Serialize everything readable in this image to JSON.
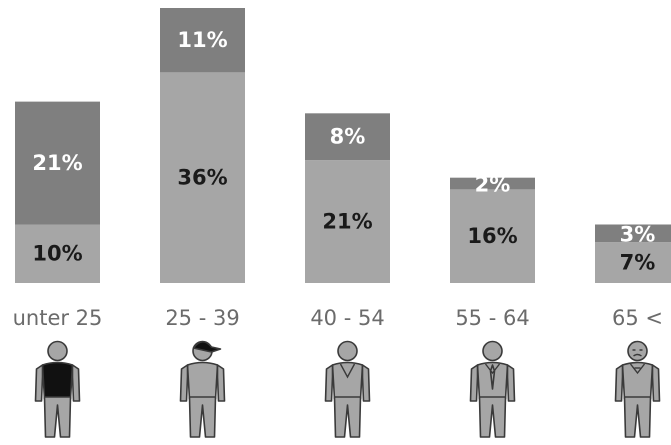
{
  "chart_data": {
    "type": "bar",
    "stacked": true,
    "categories": [
      "unter 25",
      "25 - 39",
      "40 - 54",
      "55 - 64",
      "65 <"
    ],
    "series": [
      {
        "values": [
          10,
          36,
          21,
          16,
          7
        ],
        "labels": [
          "10%",
          "36%",
          "21%",
          "16%",
          "7%"
        ],
        "color": "#a6a6a6",
        "label_color": "#1a1a1a"
      },
      {
        "values": [
          21,
          11,
          8,
          2,
          3
        ],
        "labels": [
          "21%",
          "11%",
          "8%",
          "2%",
          "3%"
        ],
        "color": "#7f7f7f",
        "label_color": "#ffffff"
      }
    ],
    "ylim": [
      0,
      47
    ],
    "grid": false,
    "icons": [
      "person-young-icon",
      "person-cap-icon",
      "person-adult-icon",
      "person-tie-icon",
      "person-senior-icon"
    ]
  }
}
